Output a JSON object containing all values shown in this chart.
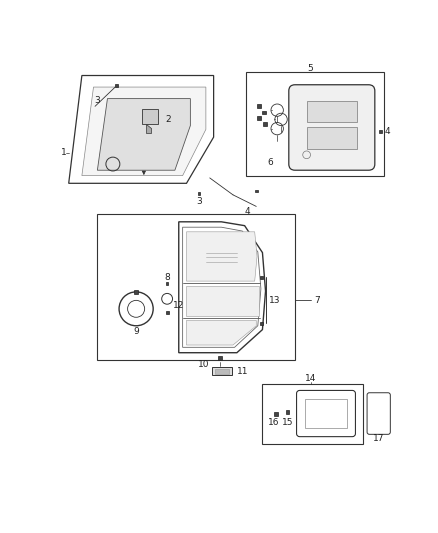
{
  "bg": "#ffffff",
  "lc": "#333333",
  "tc": "#222222",
  "fw": 4.38,
  "fh": 5.33,
  "dpi": 100,
  "fs": 6.5
}
